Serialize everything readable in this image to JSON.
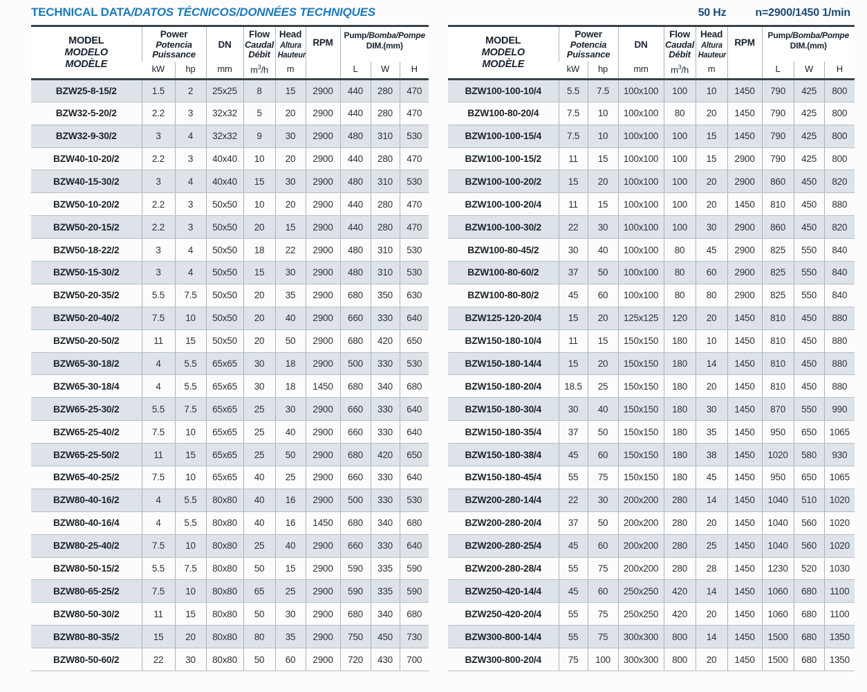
{
  "page": {
    "title_main": "TECHNICAL DATA",
    "title_rest": "/DATOS TÉCNICOS/DONNÉES TECHNIQUES",
    "frequency": "50 Hz",
    "speed": "n=2900/1450 1/min"
  },
  "table_header": {
    "model": [
      "MODEL",
      "MODELO",
      "MODÈLE"
    ],
    "power": [
      "Power",
      "Potencia",
      "Puissance"
    ],
    "dn": "DN",
    "flow": [
      "Flow",
      "Caudal",
      "Débit"
    ],
    "head": [
      "Head",
      "Altura",
      "Hauteur"
    ],
    "rpm": "RPM",
    "pump_en": "Pump",
    "pump_rest": "/Bomba/Pompe",
    "dim_label": "DIM.(mm)",
    "units": {
      "kw": "kW",
      "hp": "hp",
      "dn": "mm",
      "flow": "m³/h",
      "head": "m",
      "l": "L",
      "w": "W",
      "h": "H"
    }
  },
  "chart_data": {
    "type": "table",
    "title": "TECHNICAL DATA/DATOS TÉCNICOS/DONNÉES TECHNIQUES",
    "columns": [
      "MODEL",
      "Power kW",
      "Power hp",
      "DN mm",
      "Flow m³/h",
      "Head m",
      "RPM",
      "Pump DIM L",
      "Pump DIM W",
      "Pump DIM H"
    ]
  },
  "tables": [
    {
      "rows": [
        [
          "BZW25-8-15/2",
          "1.5",
          "2",
          "25x25",
          "8",
          "15",
          "2900",
          "440",
          "280",
          "470"
        ],
        [
          "BZW32-5-20/2",
          "2.2",
          "3",
          "32x32",
          "5",
          "20",
          "2900",
          "440",
          "280",
          "470"
        ],
        [
          "BZW32-9-30/2",
          "3",
          "4",
          "32x32",
          "9",
          "30",
          "2900",
          "480",
          "310",
          "530"
        ],
        [
          "BZW40-10-20/2",
          "2.2",
          "3",
          "40x40",
          "10",
          "20",
          "2900",
          "440",
          "280",
          "470"
        ],
        [
          "BZW40-15-30/2",
          "3",
          "4",
          "40x40",
          "15",
          "30",
          "2900",
          "480",
          "310",
          "530"
        ],
        [
          "BZW50-10-20/2",
          "2.2",
          "3",
          "50x50",
          "10",
          "20",
          "2900",
          "440",
          "280",
          "470"
        ],
        [
          "BZW50-20-15/2",
          "2.2",
          "3",
          "50x50",
          "20",
          "15",
          "2900",
          "440",
          "280",
          "470"
        ],
        [
          "BZW50-18-22/2",
          "3",
          "4",
          "50x50",
          "18",
          "22",
          "2900",
          "480",
          "310",
          "530"
        ],
        [
          "BZW50-15-30/2",
          "3",
          "4",
          "50x50",
          "15",
          "30",
          "2900",
          "480",
          "310",
          "530"
        ],
        [
          "BZW50-20-35/2",
          "5.5",
          "7.5",
          "50x50",
          "20",
          "35",
          "2900",
          "680",
          "350",
          "630"
        ],
        [
          "BZW50-20-40/2",
          "7.5",
          "10",
          "50x50",
          "20",
          "40",
          "2900",
          "660",
          "330",
          "640"
        ],
        [
          "BZW50-20-50/2",
          "11",
          "15",
          "50x50",
          "20",
          "50",
          "2900",
          "680",
          "420",
          "650"
        ],
        [
          "BZW65-30-18/2",
          "4",
          "5.5",
          "65x65",
          "30",
          "18",
          "2900",
          "500",
          "330",
          "530"
        ],
        [
          "BZW65-30-18/4",
          "4",
          "5.5",
          "65x65",
          "30",
          "18",
          "1450",
          "680",
          "340",
          "680"
        ],
        [
          "BZW65-25-30/2",
          "5.5",
          "7.5",
          "65x65",
          "25",
          "30",
          "2900",
          "660",
          "330",
          "640"
        ],
        [
          "BZW65-25-40/2",
          "7.5",
          "10",
          "65x65",
          "25",
          "40",
          "2900",
          "660",
          "330",
          "640"
        ],
        [
          "BZW65-25-50/2",
          "11",
          "15",
          "65x65",
          "25",
          "50",
          "2900",
          "680",
          "420",
          "650"
        ],
        [
          "BZW65-40-25/2",
          "7.5",
          "10",
          "65x65",
          "40",
          "25",
          "2900",
          "660",
          "330",
          "640"
        ],
        [
          "BZW80-40-16/2",
          "4",
          "5.5",
          "80x80",
          "40",
          "16",
          "2900",
          "500",
          "330",
          "530"
        ],
        [
          "BZW80-40-16/4",
          "4",
          "5.5",
          "80x80",
          "40",
          "16",
          "1450",
          "680",
          "340",
          "680"
        ],
        [
          "BZW80-25-40/2",
          "7.5",
          "10",
          "80x80",
          "25",
          "40",
          "2900",
          "660",
          "330",
          "640"
        ],
        [
          "BZW80-50-15/2",
          "5.5",
          "7.5",
          "80x80",
          "50",
          "15",
          "2900",
          "590",
          "335",
          "590"
        ],
        [
          "BZW80-65-25/2",
          "7.5",
          "10",
          "80x80",
          "65",
          "25",
          "2900",
          "590",
          "335",
          "590"
        ],
        [
          "BZW80-50-30/2",
          "11",
          "15",
          "80x80",
          "50",
          "30",
          "2900",
          "680",
          "340",
          "680"
        ],
        [
          "BZW80-80-35/2",
          "15",
          "20",
          "80x80",
          "80",
          "35",
          "2900",
          "750",
          "450",
          "730"
        ],
        [
          "BZW80-50-60/2",
          "22",
          "30",
          "80x80",
          "50",
          "60",
          "2900",
          "720",
          "430",
          "700"
        ]
      ]
    },
    {
      "rows": [
        [
          "BZW100-100-10/4",
          "5.5",
          "7.5",
          "100x100",
          "100",
          "10",
          "1450",
          "790",
          "425",
          "800"
        ],
        [
          "BZW100-80-20/4",
          "7.5",
          "10",
          "100x100",
          "80",
          "20",
          "1450",
          "790",
          "425",
          "800"
        ],
        [
          "BZW100-100-15/4",
          "7.5",
          "10",
          "100x100",
          "100",
          "15",
          "1450",
          "790",
          "425",
          "800"
        ],
        [
          "BZW100-100-15/2",
          "11",
          "15",
          "100x100",
          "100",
          "15",
          "2900",
          "790",
          "425",
          "800"
        ],
        [
          "BZW100-100-20/2",
          "15",
          "20",
          "100x100",
          "100",
          "20",
          "2900",
          "860",
          "450",
          "820"
        ],
        [
          "BZW100-100-20/4",
          "11",
          "15",
          "100x100",
          "100",
          "20",
          "1450",
          "810",
          "450",
          "880"
        ],
        [
          "BZW100-100-30/2",
          "22",
          "30",
          "100x100",
          "100",
          "30",
          "2900",
          "860",
          "450",
          "820"
        ],
        [
          "BZW100-80-45/2",
          "30",
          "40",
          "100x100",
          "80",
          "45",
          "2900",
          "825",
          "550",
          "840"
        ],
        [
          "BZW100-80-60/2",
          "37",
          "50",
          "100x100",
          "80",
          "60",
          "2900",
          "825",
          "550",
          "840"
        ],
        [
          "BZW100-80-80/2",
          "45",
          "60",
          "100x100",
          "80",
          "80",
          "2900",
          "825",
          "550",
          "840"
        ],
        [
          "BZW125-120-20/4",
          "15",
          "20",
          "125x125",
          "120",
          "20",
          "1450",
          "810",
          "450",
          "880"
        ],
        [
          "BZW150-180-10/4",
          "11",
          "15",
          "150x150",
          "180",
          "10",
          "1450",
          "810",
          "450",
          "880"
        ],
        [
          "BZW150-180-14/4",
          "15",
          "20",
          "150x150",
          "180",
          "14",
          "1450",
          "810",
          "450",
          "880"
        ],
        [
          "BZW150-180-20/4",
          "18.5",
          "25",
          "150x150",
          "180",
          "20",
          "1450",
          "810",
          "450",
          "880"
        ],
        [
          "BZW150-180-30/4",
          "30",
          "40",
          "150x150",
          "180",
          "30",
          "1450",
          "870",
          "550",
          "990"
        ],
        [
          "BZW150-180-35/4",
          "37",
          "50",
          "150x150",
          "180",
          "35",
          "1450",
          "950",
          "650",
          "1065"
        ],
        [
          "BZW150-180-38/4",
          "45",
          "60",
          "150x150",
          "180",
          "38",
          "1450",
          "1020",
          "580",
          "930"
        ],
        [
          "BZW150-180-45/4",
          "55",
          "75",
          "150x150",
          "180",
          "45",
          "1450",
          "950",
          "650",
          "1065"
        ],
        [
          "BZW200-280-14/4",
          "22",
          "30",
          "200x200",
          "280",
          "14",
          "1450",
          "1040",
          "510",
          "1020"
        ],
        [
          "BZW200-280-20/4",
          "37",
          "50",
          "200x200",
          "280",
          "20",
          "1450",
          "1040",
          "560",
          "1020"
        ],
        [
          "BZW200-280-25/4",
          "45",
          "60",
          "200x200",
          "280",
          "25",
          "1450",
          "1040",
          "560",
          "1020"
        ],
        [
          "BZW200-280-28/4",
          "55",
          "75",
          "200x200",
          "280",
          "28",
          "1450",
          "1230",
          "520",
          "1030"
        ],
        [
          "BZW250-420-14/4",
          "45",
          "60",
          "250x250",
          "420",
          "14",
          "1450",
          "1060",
          "680",
          "1100"
        ],
        [
          "BZW250-420-20/4",
          "55",
          "75",
          "250x250",
          "420",
          "20",
          "1450",
          "1060",
          "680",
          "1100"
        ],
        [
          "BZW300-800-14/4",
          "55",
          "75",
          "300x300",
          "800",
          "14",
          "1450",
          "1500",
          "680",
          "1350"
        ],
        [
          "BZW300-800-20/4",
          "75",
          "100",
          "300x300",
          "800",
          "20",
          "1450",
          "1500",
          "680",
          "1350"
        ]
      ]
    }
  ],
  "colors": {
    "title_blue": "#1b7abb",
    "freq_navy": "#1c4a74",
    "row_shade": "#dde3e9",
    "border_dark": "#3a4248",
    "border_light": "#a9b3bc"
  }
}
